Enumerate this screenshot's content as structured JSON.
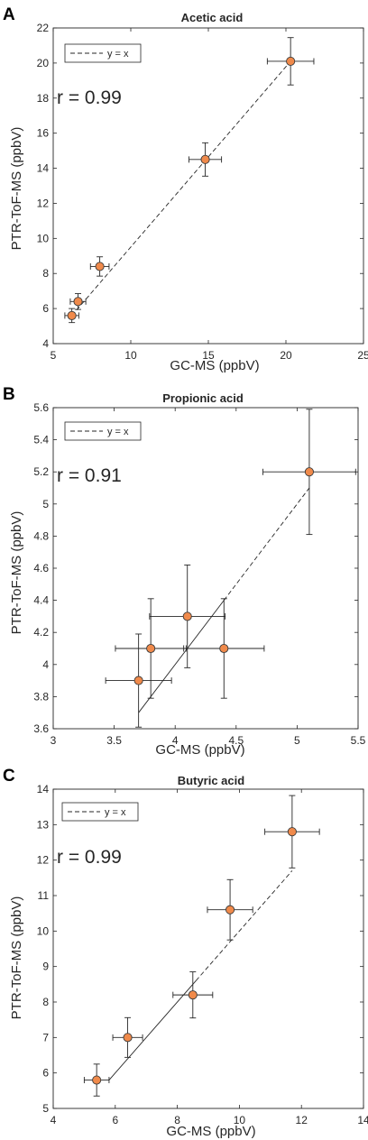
{
  "colors": {
    "marker_fill": "#F08A4B",
    "marker_edge": "#3a3a3a",
    "error_bar": "#262626",
    "reference_line": "#262626",
    "axis": "#262626"
  },
  "chart_data": [
    {
      "panel_letter": "A",
      "type": "scatter",
      "title": "Acetic acid",
      "xlabel": "GC-MS (ppbV)",
      "ylabel": "PTR-ToF-MS (ppbV)",
      "xlim": [
        5,
        25
      ],
      "ylim": [
        4,
        22
      ],
      "xticks": [
        5,
        10,
        15,
        20,
        25
      ],
      "yticks": [
        4,
        6,
        8,
        10,
        12,
        14,
        16,
        18,
        20,
        22
      ],
      "grid": false,
      "legend": {
        "label": "y = x",
        "placement": "top-left",
        "line_style": "dashed"
      },
      "annotation": "r = 0.99",
      "points": [
        {
          "x": 6.2,
          "y": 5.6,
          "xerr": 0.45,
          "yerr": 0.4
        },
        {
          "x": 6.6,
          "y": 6.4,
          "xerr": 0.5,
          "yerr": 0.45
        },
        {
          "x": 8.0,
          "y": 8.4,
          "xerr": 0.6,
          "yerr": 0.55
        },
        {
          "x": 14.8,
          "y": 14.5,
          "xerr": 1.05,
          "yerr": 0.95
        },
        {
          "x": 20.3,
          "y": 20.1,
          "xerr": 1.5,
          "yerr": 1.35
        }
      ],
      "fit_line": {
        "x": [
          6.2,
          20.3
        ],
        "y": [
          5.6,
          20.1
        ],
        "solid_until_x": 6.2
      }
    },
    {
      "panel_letter": "B",
      "type": "scatter",
      "title": "Propionic acid",
      "xlabel": "GC-MS (ppbV)",
      "ylabel": "PTR-ToF-MS (ppbV)",
      "xlim": [
        3,
        5.5
      ],
      "ylim": [
        3.6,
        5.6
      ],
      "xticks": [
        3,
        3.5,
        4,
        4.5,
        5,
        5.5
      ],
      "yticks": [
        3.6,
        3.8,
        4,
        4.2,
        4.4,
        4.6,
        4.8,
        5,
        5.2,
        5.4,
        5.6
      ],
      "grid": false,
      "legend": {
        "label": "y = x",
        "placement": "top-left",
        "line_style": "dashed"
      },
      "annotation": "r = 0.91",
      "points": [
        {
          "x": 3.7,
          "y": 3.9,
          "xerr": 0.27,
          "yerr": 0.29
        },
        {
          "x": 3.8,
          "y": 4.1,
          "xerr": 0.29,
          "yerr": 0.31
        },
        {
          "x": 4.1,
          "y": 4.3,
          "xerr": 0.31,
          "yerr": 0.32
        },
        {
          "x": 4.4,
          "y": 4.1,
          "xerr": 0.33,
          "yerr": 0.31
        },
        {
          "x": 5.1,
          "y": 5.2,
          "xerr": 0.38,
          "yerr": 0.39
        }
      ],
      "fit_line": {
        "x": [
          3.7,
          5.1
        ],
        "y": [
          3.7,
          5.1
        ],
        "solid_until_x": 4.4
      }
    },
    {
      "panel_letter": "C",
      "type": "scatter",
      "title": "Butyric acid",
      "xlabel": "GC-MS (ppbV)",
      "ylabel": "PTR-ToF-MS (ppbV)",
      "xlim": [
        4,
        14
      ],
      "ylim": [
        5,
        14
      ],
      "xticks": [
        4,
        6,
        8,
        10,
        12,
        14
      ],
      "yticks": [
        5,
        6,
        7,
        8,
        9,
        10,
        11,
        12,
        13,
        14
      ],
      "grid": false,
      "legend": {
        "label": "y = x",
        "placement": "top-left",
        "line_style": "dashed"
      },
      "annotation": "r = 0.99",
      "points": [
        {
          "x": 5.4,
          "y": 5.8,
          "xerr": 0.4,
          "yerr": 0.45
        },
        {
          "x": 6.4,
          "y": 7.0,
          "xerr": 0.48,
          "yerr": 0.56
        },
        {
          "x": 8.5,
          "y": 8.2,
          "xerr": 0.64,
          "yerr": 0.65
        },
        {
          "x": 9.7,
          "y": 10.6,
          "xerr": 0.73,
          "yerr": 0.85
        },
        {
          "x": 11.7,
          "y": 12.8,
          "xerr": 0.88,
          "yerr": 1.02
        }
      ],
      "fit_line": {
        "x": [
          5.8,
          11.7
        ],
        "y": [
          5.8,
          11.7
        ],
        "solid_until_x": 8.6
      }
    }
  ]
}
